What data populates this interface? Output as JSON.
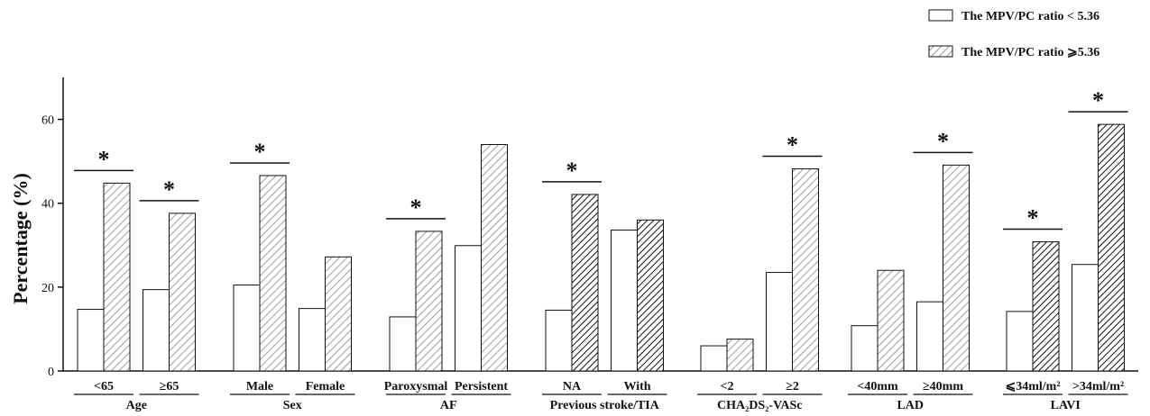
{
  "chart_data": {
    "type": "bar",
    "ylabel": "Percentage (%)",
    "ylim": [
      0,
      70
    ],
    "yticks": [
      "0",
      "20",
      "40",
      "60"
    ],
    "legend_placement": "top-right",
    "series": [
      {
        "name": "The  MPV/PC ratio < 5.36",
        "pattern": "open",
        "color": "#ffffff"
      },
      {
        "name": "The  MPV/PC ratio ⩾5.36",
        "pattern": "hatched",
        "color": "#888888"
      }
    ],
    "groups": [
      {
        "label": "Age",
        "categories": [
          {
            "label": "<65",
            "low": 14.7,
            "high": 44.8,
            "sig": true
          },
          {
            "label": "≥65",
            "low": 19.4,
            "high": 37.6,
            "sig": true
          }
        ]
      },
      {
        "label": "Sex",
        "categories": [
          {
            "label": "Male",
            "low": 20.5,
            "high": 46.6,
            "sig": true
          },
          {
            "label": "Female",
            "low": 14.9,
            "high": 27.2,
            "sig": false
          }
        ]
      },
      {
        "label": "AF",
        "categories": [
          {
            "label": "Paroxysmal",
            "low": 12.9,
            "high": 33.3,
            "sig": true
          },
          {
            "label": "Persistent",
            "low": 29.9,
            "high": 54.0,
            "sig": false
          }
        ]
      },
      {
        "label": "Previous stroke/TIA",
        "categories": [
          {
            "label": "NA",
            "low": 14.5,
            "high": 42.1,
            "sig": true
          },
          {
            "label": "With",
            "low": 33.6,
            "high": 36.0,
            "sig": false
          }
        ]
      },
      {
        "label": "CHA₂DS₂-VASc",
        "categories": [
          {
            "label": "<2",
            "low": 6.0,
            "high": 7.6,
            "sig": false
          },
          {
            "label": "≥2",
            "low": 23.5,
            "high": 48.2,
            "sig": true
          }
        ]
      },
      {
        "label": "LAD",
        "categories": [
          {
            "label": "<40mm",
            "low": 10.8,
            "high": 24.0,
            "sig": false
          },
          {
            "label": "≥40mm",
            "low": 16.5,
            "high": 49.1,
            "sig": true
          }
        ]
      },
      {
        "label": "LAVI",
        "categories": [
          {
            "label": "⩽34ml/m²",
            "low": 14.2,
            "high": 30.8,
            "sig": true
          },
          {
            "label": ">34ml/m²",
            "low": 25.4,
            "high": 58.8,
            "sig": true
          }
        ]
      }
    ],
    "significance_marker": "*"
  }
}
